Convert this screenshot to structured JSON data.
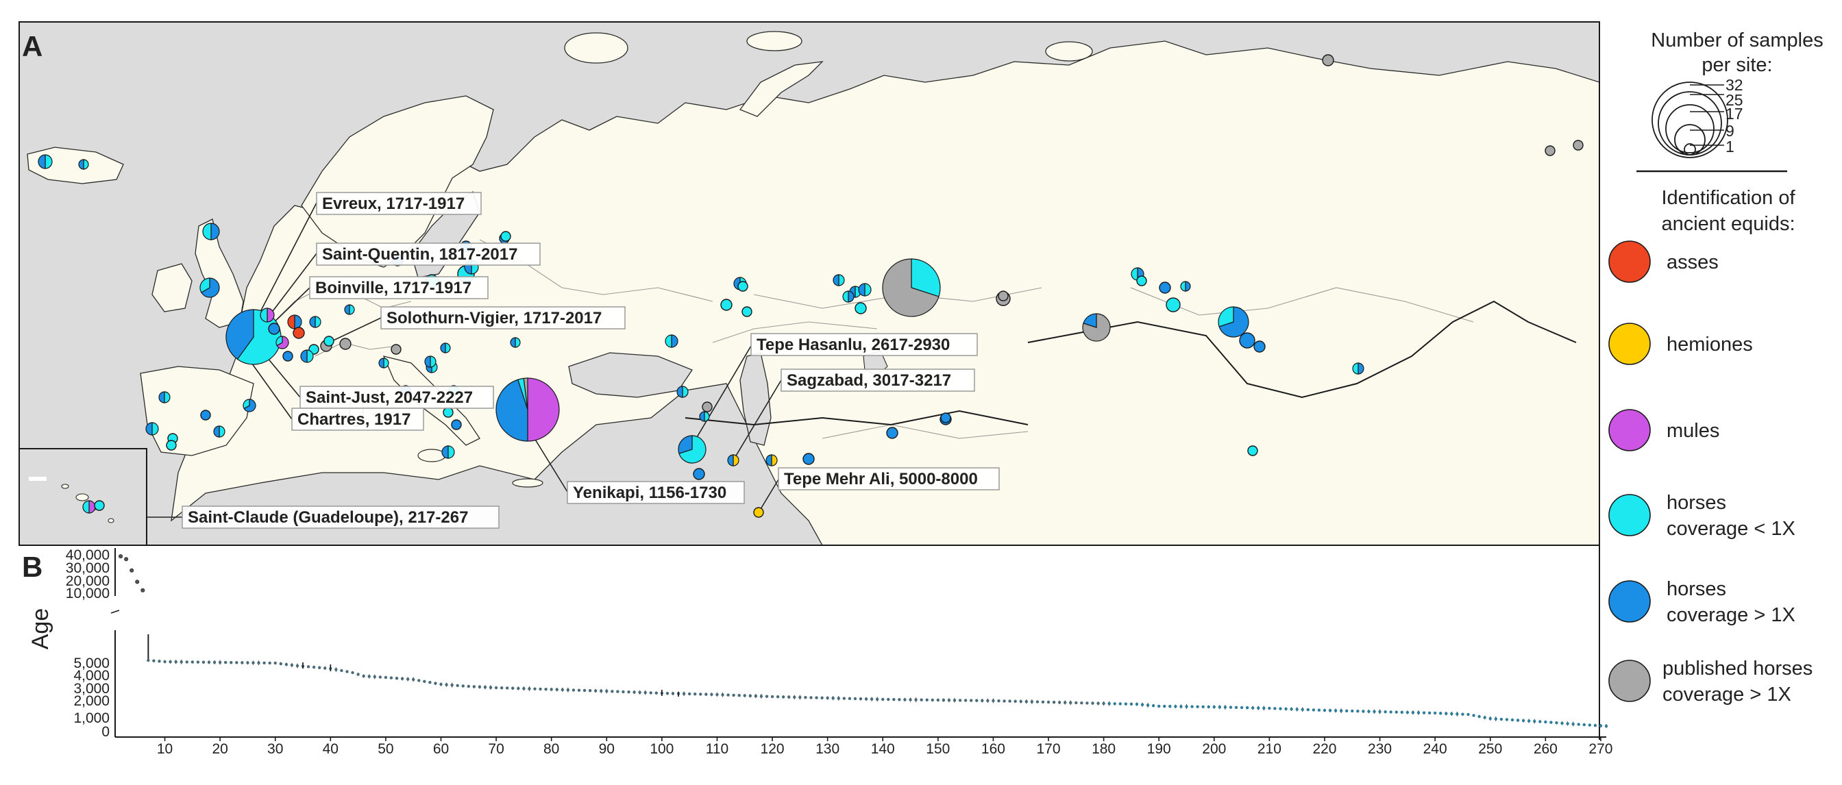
{
  "panel_a": {
    "letter": "A"
  },
  "panel_b": {
    "letter": "B"
  },
  "site_labels": [
    "Evreux, 1717-1917",
    "Saint-Quentin, 1817-2017",
    "Boinville, 1717-1917",
    "Solothurn-Vigier, 1717-2017",
    "Saint-Just, 2047-2227",
    "Chartres, 1917",
    "Tepe Hasanlu, 2617-2930",
    "Sagzabad, 3017-3217",
    "Yenikapi, 1156-1730",
    "Tepe Mehr Ali, 5000-8000",
    "Saint-Claude (Guadeloupe), 217-267"
  ],
  "legend": {
    "size_title": [
      "Number of samples",
      "per site:"
    ],
    "size_values": [
      "32",
      "25",
      "17",
      "9",
      "1"
    ],
    "category_title": [
      "Identification of",
      "ancient equids:"
    ],
    "categories": [
      {
        "lines": [
          "asses"
        ],
        "color": "#ee4523"
      },
      {
        "lines": [
          "hemiones"
        ],
        "color": "#ffcc00"
      },
      {
        "lines": [
          "mules"
        ],
        "color": "#cc55e6"
      },
      {
        "lines": [
          "horses",
          "coverage < 1X"
        ],
        "color": "#1ee8ef"
      },
      {
        "lines": [
          "horses",
          "coverage > 1X"
        ],
        "color": "#1b8ee6"
      },
      {
        "lines": [
          "published horses",
          "coverage > 1X"
        ],
        "color": "#a8a8a8"
      }
    ]
  },
  "colors": {
    "land": "#fbfaed",
    "sea": "#dcdcdc",
    "asses": "#ee4523",
    "hemiones": "#ffcc00",
    "mules": "#cc55e6",
    "horses_low": "#1ee8ef",
    "horses_high": "#1b8ee6",
    "published": "#a8a8a8"
  },
  "chart_data": {
    "type": "scatter",
    "xlabel": "",
    "ylabel": "Age",
    "x_ticks": [
      "10",
      "20",
      "30",
      "40",
      "50",
      "60",
      "70",
      "80",
      "90",
      "100",
      "110",
      "120",
      "130",
      "140",
      "150",
      "160",
      "170",
      "180",
      "190",
      "200",
      "210",
      "220",
      "230",
      "240",
      "250",
      "260",
      "270"
    ],
    "y_ticks_upper": [
      "40,000",
      "30,000",
      "20,000",
      "10,000"
    ],
    "y_ticks_lower": [
      "5,000",
      "4,000",
      "3,000",
      "2,000",
      "1,000",
      "0"
    ],
    "xlim": [
      1,
      271
    ],
    "ylim_lower": [
      0,
      7000
    ],
    "ylim_upper": [
      10000,
      40000
    ],
    "upper_points": [
      {
        "x": 2,
        "y": 38000
      },
      {
        "x": 3,
        "y": 36000
      },
      {
        "x": 4,
        "y": 28000
      },
      {
        "x": 5,
        "y": 20000
      },
      {
        "x": 6,
        "y": 14000
      }
    ],
    "profile": [
      [
        7,
        5100
      ],
      [
        10,
        5000
      ],
      [
        20,
        4950
      ],
      [
        30,
        4900
      ],
      [
        34,
        4700
      ],
      [
        40,
        4500
      ],
      [
        44,
        4200
      ],
      [
        46,
        3950
      ],
      [
        50,
        3850
      ],
      [
        55,
        3700
      ],
      [
        60,
        3350
      ],
      [
        65,
        3200
      ],
      [
        70,
        3100
      ],
      [
        80,
        2980
      ],
      [
        90,
        2850
      ],
      [
        100,
        2700
      ],
      [
        110,
        2600
      ],
      [
        120,
        2450
      ],
      [
        130,
        2350
      ],
      [
        140,
        2250
      ],
      [
        150,
        2200
      ],
      [
        160,
        2150
      ],
      [
        170,
        2050
      ],
      [
        180,
        1950
      ],
      [
        186,
        1900
      ],
      [
        190,
        1750
      ],
      [
        200,
        1700
      ],
      [
        210,
        1600
      ],
      [
        220,
        1450
      ],
      [
        230,
        1350
      ],
      [
        240,
        1250
      ],
      [
        246,
        1150
      ],
      [
        250,
        850
      ],
      [
        260,
        600
      ],
      [
        265,
        450
      ],
      [
        271,
        300
      ]
    ],
    "n_points": 265
  }
}
